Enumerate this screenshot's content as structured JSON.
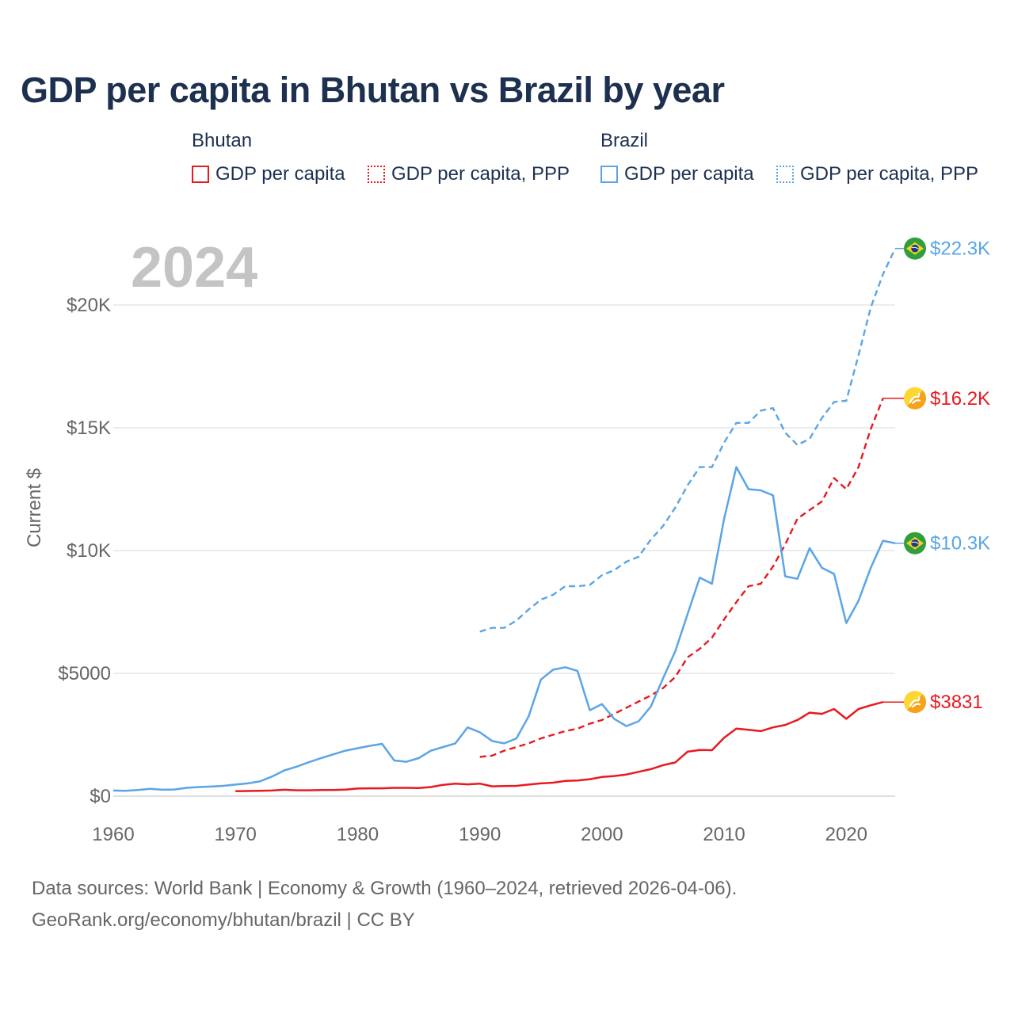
{
  "title": "GDP per capita in Bhutan vs Brazil by year",
  "legend": {
    "groups": [
      {
        "name": "Bhutan",
        "items": [
          {
            "label": "GDP per capita",
            "color": "#e8191f",
            "style": "solid"
          },
          {
            "label": "GDP per capita, PPP",
            "color": "#e8191f",
            "style": "dotted"
          }
        ]
      },
      {
        "name": "Brazil",
        "items": [
          {
            "label": "GDP per capita",
            "color": "#5aa5e6",
            "style": "solid"
          },
          {
            "label": "GDP per capita, PPP",
            "color": "#5aa5e6",
            "style": "dotted"
          }
        ]
      }
    ]
  },
  "sources": [
    "Data sources: World Bank | Economy & Growth (1960–2024, retrieved 2026-04-06).",
    "GeoRank.org/economy/bhutan/brazil | CC BY"
  ],
  "chart_data": {
    "type": "line",
    "title": "GDP per capita in Bhutan vs Brazil by year",
    "watermark_year": "2024",
    "ylabel": "Current $",
    "xlabel": "",
    "xlim": [
      1960,
      2024
    ],
    "ylim": [
      0,
      23000
    ],
    "x_ticks": [
      1960,
      1970,
      1980,
      1990,
      2000,
      2010,
      2020
    ],
    "y_ticks": [
      {
        "value": 0,
        "label": "$0"
      },
      {
        "value": 5000,
        "label": "$5000"
      },
      {
        "value": 10000,
        "label": "$10K"
      },
      {
        "value": 15000,
        "label": "$15K"
      },
      {
        "value": 20000,
        "label": "$20K"
      }
    ],
    "grid": true,
    "series": [
      {
        "name": "Brazil GDP per capita, PPP",
        "country": "Brazil",
        "color": "#5aa5e6",
        "dash": "dashed",
        "end_label": "$22.3K",
        "flag": "brazil-flag-icon",
        "points": [
          [
            1990,
            6700
          ],
          [
            1991,
            6850
          ],
          [
            1992,
            6850
          ],
          [
            1993,
            7150
          ],
          [
            1994,
            7600
          ],
          [
            1995,
            8000
          ],
          [
            1996,
            8200
          ],
          [
            1997,
            8550
          ],
          [
            1998,
            8550
          ],
          [
            1999,
            8600
          ],
          [
            2000,
            9000
          ],
          [
            2001,
            9200
          ],
          [
            2002,
            9550
          ],
          [
            2003,
            9750
          ],
          [
            2004,
            10450
          ],
          [
            2005,
            11000
          ],
          [
            2006,
            11750
          ],
          [
            2007,
            12650
          ],
          [
            2008,
            13400
          ],
          [
            2009,
            13400
          ],
          [
            2010,
            14400
          ],
          [
            2011,
            15200
          ],
          [
            2012,
            15200
          ],
          [
            2013,
            15700
          ],
          [
            2014,
            15800
          ],
          [
            2015,
            14800
          ],
          [
            2016,
            14300
          ],
          [
            2017,
            14550
          ],
          [
            2018,
            15400
          ],
          [
            2019,
            16050
          ],
          [
            2020,
            16100
          ],
          [
            2021,
            17950
          ],
          [
            2022,
            19900
          ],
          [
            2023,
            21250
          ],
          [
            2024,
            22300
          ]
        ]
      },
      {
        "name": "Bhutan GDP per capita, PPP",
        "country": "Bhutan",
        "color": "#e8191f",
        "dash": "dashed",
        "end_label": "$16.2K",
        "flag": "bhutan-flag-icon",
        "points": [
          [
            1990,
            1600
          ],
          [
            1991,
            1650
          ],
          [
            1992,
            1850
          ],
          [
            1993,
            2000
          ],
          [
            1994,
            2150
          ],
          [
            1995,
            2350
          ],
          [
            1996,
            2500
          ],
          [
            1997,
            2650
          ],
          [
            1998,
            2750
          ],
          [
            1999,
            2950
          ],
          [
            2000,
            3100
          ],
          [
            2001,
            3350
          ],
          [
            2002,
            3600
          ],
          [
            2003,
            3850
          ],
          [
            2004,
            4100
          ],
          [
            2005,
            4400
          ],
          [
            2006,
            4850
          ],
          [
            2007,
            5650
          ],
          [
            2008,
            6000
          ],
          [
            2009,
            6450
          ],
          [
            2010,
            7200
          ],
          [
            2011,
            7900
          ],
          [
            2012,
            8550
          ],
          [
            2013,
            8650
          ],
          [
            2014,
            9350
          ],
          [
            2015,
            10250
          ],
          [
            2016,
            11300
          ],
          [
            2017,
            11650
          ],
          [
            2018,
            12000
          ],
          [
            2019,
            12950
          ],
          [
            2020,
            12500
          ],
          [
            2021,
            13400
          ],
          [
            2022,
            14950
          ],
          [
            2023,
            16200
          ]
        ]
      },
      {
        "name": "Brazil GDP per capita",
        "country": "Brazil",
        "color": "#5aa5e6",
        "dash": "solid",
        "end_label": "$10.3K",
        "flag": "brazil-flag-icon",
        "points": [
          [
            1960,
            230
          ],
          [
            1961,
            220
          ],
          [
            1962,
            250
          ],
          [
            1963,
            300
          ],
          [
            1964,
            260
          ],
          [
            1965,
            270
          ],
          [
            1966,
            340
          ],
          [
            1967,
            370
          ],
          [
            1968,
            390
          ],
          [
            1969,
            420
          ],
          [
            1970,
            470
          ],
          [
            1971,
            520
          ],
          [
            1972,
            600
          ],
          [
            1973,
            800
          ],
          [
            1974,
            1050
          ],
          [
            1975,
            1200
          ],
          [
            1976,
            1380
          ],
          [
            1977,
            1550
          ],
          [
            1978,
            1700
          ],
          [
            1979,
            1850
          ],
          [
            1980,
            1950
          ],
          [
            1981,
            2050
          ],
          [
            1982,
            2130
          ],
          [
            1983,
            1450
          ],
          [
            1984,
            1400
          ],
          [
            1985,
            1550
          ],
          [
            1986,
            1850
          ],
          [
            1987,
            2000
          ],
          [
            1988,
            2150
          ],
          [
            1989,
            2800
          ],
          [
            1990,
            2600
          ],
          [
            1991,
            2250
          ],
          [
            1992,
            2150
          ],
          [
            1993,
            2350
          ],
          [
            1994,
            3250
          ],
          [
            1995,
            4750
          ],
          [
            1996,
            5150
          ],
          [
            1997,
            5250
          ],
          [
            1998,
            5100
          ],
          [
            1999,
            3500
          ],
          [
            2000,
            3750
          ],
          [
            2001,
            3150
          ],
          [
            2002,
            2850
          ],
          [
            2003,
            3050
          ],
          [
            2004,
            3650
          ],
          [
            2005,
            4800
          ],
          [
            2006,
            5900
          ],
          [
            2007,
            7400
          ],
          [
            2008,
            8900
          ],
          [
            2009,
            8650
          ],
          [
            2010,
            11300
          ],
          [
            2011,
            13400
          ],
          [
            2012,
            12500
          ],
          [
            2013,
            12450
          ],
          [
            2014,
            12250
          ],
          [
            2015,
            8950
          ],
          [
            2016,
            8850
          ],
          [
            2017,
            10100
          ],
          [
            2018,
            9300
          ],
          [
            2019,
            9050
          ],
          [
            2020,
            7050
          ],
          [
            2021,
            7950
          ],
          [
            2022,
            9300
          ],
          [
            2023,
            10400
          ],
          [
            2024,
            10300
          ]
        ]
      },
      {
        "name": "Bhutan GDP per capita",
        "country": "Bhutan",
        "color": "#e8191f",
        "dash": "solid",
        "end_label": "$3831",
        "flag": "bhutan-flag-icon",
        "points": [
          [
            1970,
            200
          ],
          [
            1971,
            210
          ],
          [
            1972,
            215
          ],
          [
            1973,
            230
          ],
          [
            1974,
            260
          ],
          [
            1975,
            240
          ],
          [
            1976,
            240
          ],
          [
            1977,
            250
          ],
          [
            1978,
            250
          ],
          [
            1979,
            265
          ],
          [
            1980,
            310
          ],
          [
            1981,
            320
          ],
          [
            1982,
            320
          ],
          [
            1983,
            340
          ],
          [
            1984,
            340
          ],
          [
            1985,
            330
          ],
          [
            1986,
            370
          ],
          [
            1987,
            460
          ],
          [
            1988,
            510
          ],
          [
            1989,
            480
          ],
          [
            1990,
            510
          ],
          [
            1991,
            400
          ],
          [
            1992,
            410
          ],
          [
            1993,
            420
          ],
          [
            1994,
            470
          ],
          [
            1995,
            520
          ],
          [
            1996,
            550
          ],
          [
            1997,
            620
          ],
          [
            1998,
            640
          ],
          [
            1999,
            690
          ],
          [
            2000,
            780
          ],
          [
            2001,
            820
          ],
          [
            2002,
            880
          ],
          [
            2003,
            990
          ],
          [
            2004,
            1100
          ],
          [
            2005,
            1260
          ],
          [
            2006,
            1370
          ],
          [
            2007,
            1810
          ],
          [
            2008,
            1880
          ],
          [
            2009,
            1870
          ],
          [
            2010,
            2380
          ],
          [
            2011,
            2750
          ],
          [
            2012,
            2700
          ],
          [
            2013,
            2650
          ],
          [
            2014,
            2800
          ],
          [
            2015,
            2900
          ],
          [
            2016,
            3100
          ],
          [
            2017,
            3400
          ],
          [
            2018,
            3350
          ],
          [
            2019,
            3550
          ],
          [
            2020,
            3150
          ],
          [
            2021,
            3550
          ],
          [
            2022,
            3700
          ],
          [
            2023,
            3831
          ]
        ]
      }
    ]
  }
}
